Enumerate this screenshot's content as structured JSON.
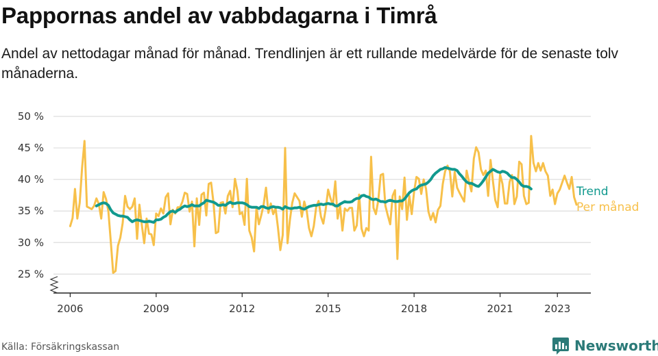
{
  "header": {
    "title": "Pappornas andel av vabbdagarna i Timrå",
    "subtitle": "Andel av nettodagar månad för månad. Trendlinjen är ett rullande medelvärde för de senaste tolv månaderna."
  },
  "footer": {
    "source": "Källa: Försäkringskassan",
    "brand": "Newsworthy"
  },
  "colors": {
    "trend": "#11998e",
    "monthly": "#f7c04a",
    "brand": "#2b7a78",
    "grid": "#dddddd"
  },
  "icons": {
    "axis_break": "zigzag-break-icon",
    "brand": "bar-chart-speech-bubble-icon"
  },
  "chart_data": {
    "type": "line",
    "title": "Pappornas andel av vabbdagarna i Timrå",
    "xlabel": "",
    "ylabel": "",
    "x_start": "2006-01",
    "x_interval": "month",
    "xlim": [
      "2005-06",
      "2024-03"
    ],
    "ylim": [
      22,
      50
    ],
    "y_ticks": [
      25,
      30,
      35,
      40,
      45,
      50
    ],
    "y_tick_labels": [
      "25 %",
      "30 %",
      "35 %",
      "40 %",
      "45 %",
      "50 %"
    ],
    "x_ticks": [
      "2006-01",
      "2009-01",
      "2012-01",
      "2015-01",
      "2018-01",
      "2021-01",
      "2023-01"
    ],
    "x_tick_labels": [
      "2006",
      "2009",
      "2012",
      "2015",
      "2018",
      "2021",
      "2023"
    ],
    "grid": "horizontal",
    "legend": "right, at line ends",
    "series": [
      {
        "name": "Trend",
        "start": "2006-12",
        "values": [
          35.8,
          36.0,
          36.2,
          36.3,
          36.2,
          35.9,
          35.2,
          34.7,
          34.5,
          34.3,
          34.2,
          34.2,
          34.1,
          34.0,
          33.6,
          33.3,
          33.5,
          33.6,
          33.5,
          33.4,
          33.3,
          33.3,
          33.4,
          33.3,
          33.2,
          33.6,
          33.6,
          33.7,
          34.0,
          34.2,
          34.6,
          34.9,
          35.0,
          34.8,
          35.1,
          35.3,
          35.6,
          35.8,
          35.7,
          35.8,
          36.0,
          35.8,
          35.8,
          35.8,
          36.1,
          36.3,
          36.7,
          36.6,
          36.5,
          36.4,
          36.2,
          35.9,
          35.9,
          36.0,
          35.9,
          36.2,
          36.4,
          36.2,
          36.2,
          36.3,
          36.3,
          36.3,
          36.2,
          36.0,
          35.7,
          35.6,
          35.6,
          35.6,
          35.4,
          35.7,
          35.7,
          35.5,
          35.4,
          35.6,
          35.7,
          35.6,
          35.6,
          35.5,
          35.3,
          35.7,
          35.5,
          35.4,
          35.4,
          35.5,
          35.5,
          35.6,
          35.4,
          35.3,
          35.5,
          35.7,
          35.8,
          35.9,
          35.9,
          36.0,
          36.1,
          36.0,
          36.1,
          36.2,
          36.1,
          36.1,
          35.8,
          35.8,
          36.1,
          36.3,
          36.5,
          36.4,
          36.4,
          36.5,
          36.8,
          37.0,
          37.0,
          37.4,
          37.5,
          37.3,
          37.2,
          36.9,
          36.8,
          36.9,
          36.7,
          36.5,
          36.5,
          36.4,
          36.6,
          36.7,
          36.6,
          36.5,
          36.5,
          36.6,
          36.6,
          36.9,
          37.4,
          37.9,
          38.2,
          38.4,
          38.5,
          38.9,
          39.1,
          39.2,
          39.3,
          39.6,
          40.0,
          40.6,
          41.0,
          41.3,
          41.6,
          41.7,
          41.9,
          41.8,
          41.7,
          41.6,
          41.6,
          41.4,
          40.9,
          40.5,
          40.0,
          39.6,
          39.4,
          39.4,
          39.2,
          39.0,
          38.9,
          39.3,
          39.8,
          40.4,
          41.0,
          41.3,
          41.6,
          41.4,
          41.2,
          41.1,
          41.3,
          41.2,
          41.0,
          40.6,
          40.3,
          40.3,
          40.0,
          39.6,
          39.1,
          38.9,
          38.9,
          38.8,
          38.5
        ]
      },
      {
        "name": "Per månad",
        "start": "2006-01",
        "values": [
          32.6,
          33.9,
          38.5,
          33.8,
          36.3,
          41.9,
          46.1,
          35.7,
          35.5,
          35.3,
          35.8,
          37.0,
          36.1,
          33.8,
          38.0,
          36.9,
          35.0,
          30.2,
          25.2,
          25.5,
          29.5,
          30.8,
          33.1,
          37.4,
          35.7,
          35.3,
          35.7,
          37.0,
          30.6,
          36.0,
          32.8,
          29.9,
          33.8,
          31.4,
          31.3,
          29.6,
          34.6,
          34.2,
          35.4,
          34.6,
          37.2,
          37.8,
          32.9,
          35.2,
          34.6,
          35.6,
          35.6,
          36.5,
          37.9,
          37.7,
          34.9,
          36.5,
          29.4,
          37.0,
          32.8,
          37.6,
          37.9,
          34.3,
          39.3,
          39.5,
          36.3,
          31.5,
          31.7,
          36.3,
          36.4,
          34.6,
          37.4,
          38.2,
          35.6,
          40.1,
          38.2,
          34.5,
          34.8,
          32.8,
          40.1,
          31.9,
          30.8,
          28.6,
          35.6,
          32.9,
          34.3,
          36.0,
          38.7,
          34.7,
          36.2,
          34.5,
          35.4,
          32.4,
          28.8,
          31.2,
          45.0,
          29.9,
          33.6,
          36.3,
          37.8,
          37.2,
          36.6,
          34.1,
          36.5,
          35.1,
          32.3,
          31.0,
          32.6,
          35.6,
          36.6,
          34.1,
          33.0,
          35.3,
          38.4,
          37.0,
          35.9,
          39.7,
          33.8,
          35.9,
          31.9,
          35.4,
          35.0,
          35.5,
          35.5,
          31.9,
          32.7,
          37.6,
          32.2,
          31.0,
          32.3,
          31.9,
          43.6,
          35.5,
          34.5,
          36.7,
          40.7,
          40.9,
          35.8,
          34.3,
          32.9,
          37.4,
          38.3,
          27.4,
          37.3,
          35.3,
          40.3,
          33.6,
          37.4,
          34.5,
          38.1,
          40.4,
          40.1,
          37.7,
          40.0,
          38.5,
          34.9,
          33.6,
          34.7,
          33.2,
          35.2,
          35.8,
          39.3,
          41.3,
          42.2,
          41.3,
          37.3,
          41.2,
          38.7,
          37.9,
          37.2,
          36.5,
          41.4,
          39.6,
          38.1,
          43.3,
          45.1,
          44.3,
          41.6,
          40.7,
          41.4,
          37.4,
          43.1,
          39.8,
          36.7,
          35.6,
          40.8,
          39.3,
          36.2,
          36.2,
          39.6,
          40.7,
          36.1,
          37.3,
          42.8,
          42.4,
          37.4,
          36.1,
          36.3,
          46.9,
          42.6,
          41.3,
          42.6,
          41.4,
          42.6,
          41.3,
          40.6,
          37.4,
          38.4,
          36.1,
          37.8,
          38.4,
          39.5,
          40.6,
          39.5,
          38.5,
          40.4,
          37.2,
          36.0
        ]
      }
    ]
  }
}
